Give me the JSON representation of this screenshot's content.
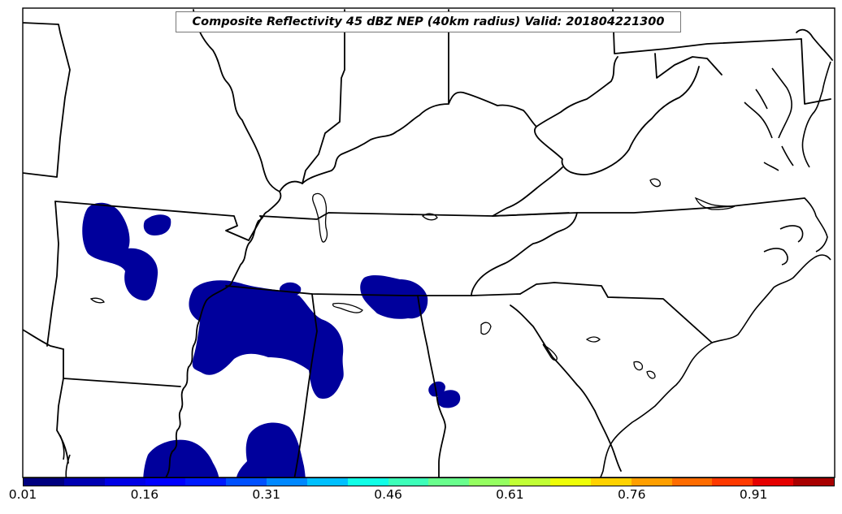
{
  "title": "Composite Reflectivity 45 dBZ NEP (40km radius) Valid: 201804221300",
  "colorbar": {
    "colors": [
      "#00007f",
      "#0000b2",
      "#0000e5",
      "#0000ff",
      "#0019ff",
      "#0050ff",
      "#0088ff",
      "#00c0ff",
      "#11ffe6",
      "#3dffb9",
      "#69ff8d",
      "#95ff61",
      "#c1ff35",
      "#eeff08",
      "#ffd200",
      "#ff9f00",
      "#ff6c00",
      "#ff3900",
      "#e50000",
      "#a80000"
    ],
    "ticks": [
      {
        "value": 0.01,
        "label": "0.01"
      },
      {
        "value": 0.16,
        "label": "0.16"
      },
      {
        "value": 0.31,
        "label": "0.31"
      },
      {
        "value": 0.46,
        "label": "0.46"
      },
      {
        "value": 0.61,
        "label": "0.61"
      },
      {
        "value": 0.76,
        "label": "0.76"
      },
      {
        "value": 0.91,
        "label": "0.91"
      }
    ],
    "min": 0.01,
    "max": 1.01
  },
  "precip_color": "#00009c"
}
